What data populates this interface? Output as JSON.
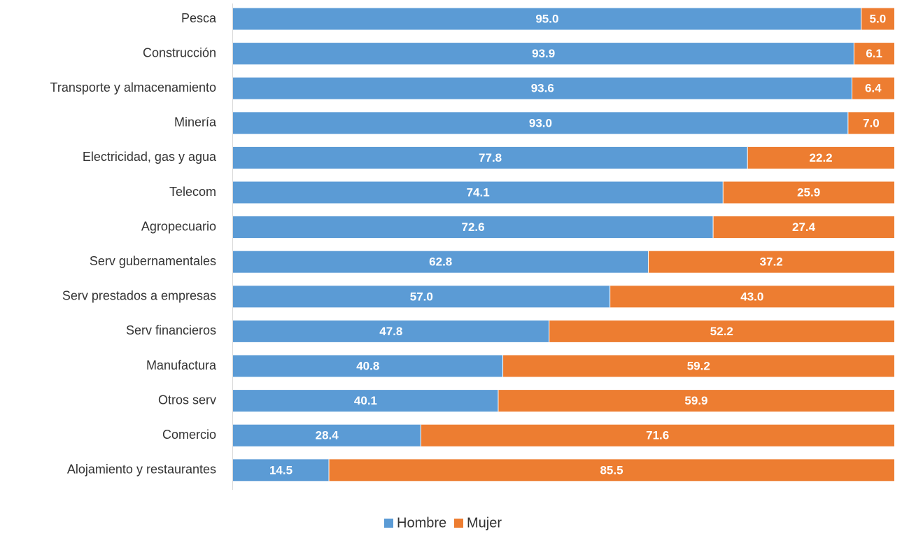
{
  "chart_data": {
    "type": "bar",
    "orientation": "horizontal",
    "stacked": true,
    "categories": [
      "Pesca",
      "Construcción",
      "Transporte y almacenamiento",
      "Minería",
      "Electricidad, gas y agua",
      "Telecom",
      "Agropecuario",
      "Serv gubernamentales",
      "Serv prestados a empresas",
      "Serv financieros",
      "Manufactura",
      "Otros serv",
      "Comercio",
      "Alojamiento y restaurantes"
    ],
    "series": [
      {
        "name": "Hombre",
        "color": "#5B9BD5",
        "values": [
          95.0,
          93.9,
          93.6,
          93.0,
          77.8,
          74.1,
          72.6,
          62.8,
          57.0,
          47.8,
          40.8,
          40.1,
          28.4,
          14.5
        ]
      },
      {
        "name": "Mujer",
        "color": "#ED7D31",
        "values": [
          5.0,
          6.1,
          6.4,
          7.0,
          22.2,
          25.9,
          27.4,
          37.2,
          43.0,
          52.2,
          59.2,
          59.9,
          71.6,
          85.5
        ]
      }
    ],
    "value_format_decimals": 1,
    "xlim": [
      0,
      100
    ],
    "grid": false,
    "legend_position": "bottom"
  }
}
